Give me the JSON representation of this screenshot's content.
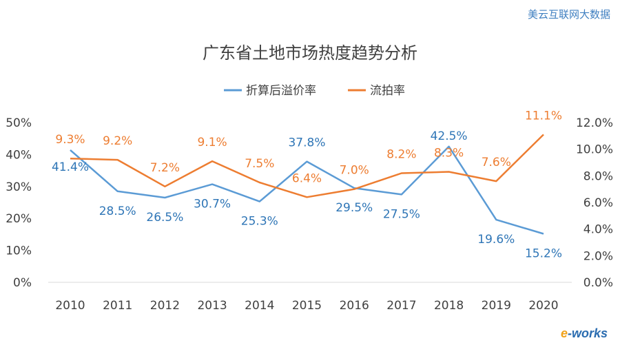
{
  "watermark": "美云互联网大数据",
  "logo": {
    "prefix": "e",
    "suffix": "-works"
  },
  "chart_data": {
    "type": "line",
    "title": "广东省土地市场热度趋势分析",
    "categories": [
      "2010",
      "2011",
      "2012",
      "2013",
      "2014",
      "2015",
      "2016",
      "2017",
      "2018",
      "2019",
      "2020"
    ],
    "legend_position": "top-center",
    "grid": false,
    "y_left": {
      "range": [
        0,
        50
      ],
      "ticks": [
        "0%",
        "10%",
        "20%",
        "30%",
        "40%",
        "50%"
      ]
    },
    "y_right": {
      "range": [
        0,
        12
      ],
      "ticks": [
        "0.0%",
        "2.0%",
        "4.0%",
        "6.0%",
        "8.0%",
        "10.0%",
        "12.0%"
      ]
    },
    "series": [
      {
        "name": "折算后溢价率",
        "axis": "left",
        "color": "#5b9bd5",
        "label_color": "#2e75b6",
        "values": [
          41.4,
          28.5,
          26.5,
          30.7,
          25.3,
          37.8,
          29.5,
          27.5,
          42.5,
          19.6,
          15.2
        ],
        "labels": [
          "41.4%",
          "28.5%",
          "26.5%",
          "30.7%",
          "25.3%",
          "37.8%",
          "29.5%",
          "27.5%",
          "42.5%",
          "19.6%",
          "15.2%"
        ]
      },
      {
        "name": "流拍率",
        "axis": "right",
        "color": "#ed7d31",
        "label_color": "#ed7d31",
        "values": [
          9.3,
          9.2,
          7.2,
          9.1,
          7.5,
          6.4,
          7.0,
          8.2,
          8.3,
          7.6,
          11.1
        ],
        "labels": [
          "9.3%",
          "9.2%",
          "7.2%",
          "9.1%",
          "7.5%",
          "6.4%",
          "7.0%",
          "8.2%",
          "8.3%",
          "7.6%",
          "11.1%"
        ]
      }
    ]
  }
}
